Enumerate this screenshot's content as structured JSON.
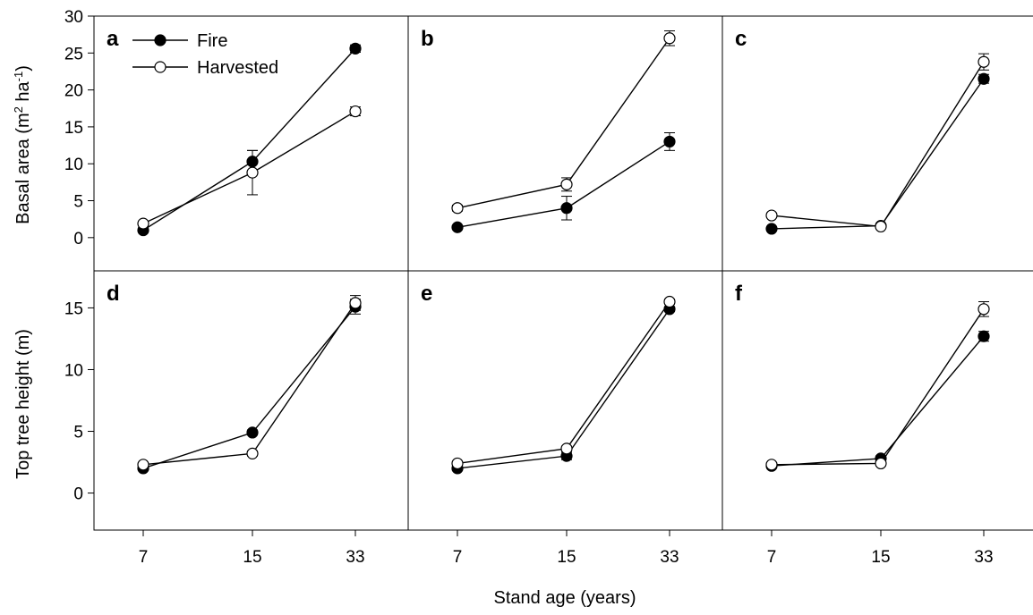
{
  "figure": {
    "xlabel": "Stand age (years)",
    "legend": {
      "placement": "top-left of panel a",
      "entries": [
        {
          "key": "fire",
          "label": "Fire",
          "marker": "filled-circle"
        },
        {
          "key": "harvested",
          "label": "Harvested",
          "marker": "open-circle"
        }
      ]
    },
    "rows": [
      {
        "ylabel_main": "Basal area (m",
        "ylabel_sup1": "2",
        "ylabel_mid": " ha",
        "ylabel_sup2": "-1",
        "ylabel_end": ")",
        "ylim": [
          -4.5,
          30
        ],
        "yticks": [
          0,
          5,
          10,
          15,
          20,
          25,
          30
        ]
      },
      {
        "ylabel_main": "Top tree height (m)",
        "ylabel_sup1": "",
        "ylabel_mid": "",
        "ylabel_sup2": "",
        "ylabel_end": "",
        "ylim": [
          -3,
          18
        ],
        "yticks": [
          0,
          5,
          10,
          15
        ]
      }
    ],
    "colors": {
      "axis": "#000000",
      "fire": "#000000",
      "harvested_fill": "#ffffff"
    }
  },
  "chart_data": [
    {
      "panel": "a",
      "type": "line",
      "categories": [
        "7",
        "15",
        "33"
      ],
      "xlabel": "Stand age (years)",
      "ylabel": "Basal area (m2 ha-1)",
      "series": [
        {
          "name": "Fire",
          "values": [
            1.0,
            10.3,
            25.6
          ],
          "errors": [
            0.3,
            1.5,
            0.5
          ]
        },
        {
          "name": "Harvested",
          "values": [
            1.9,
            8.8,
            17.1
          ],
          "errors": [
            0.3,
            3.0,
            0.6
          ]
        }
      ]
    },
    {
      "panel": "b",
      "type": "line",
      "categories": [
        "7",
        "15",
        "33"
      ],
      "xlabel": "Stand age (years)",
      "ylabel": "Basal area (m2 ha-1)",
      "series": [
        {
          "name": "Fire",
          "values": [
            1.4,
            4.0,
            13.0
          ],
          "errors": [
            0.2,
            1.6,
            1.2
          ]
        },
        {
          "name": "Harvested",
          "values": [
            4.0,
            7.2,
            27.0
          ],
          "errors": [
            0.4,
            0.9,
            1.0
          ]
        }
      ]
    },
    {
      "panel": "c",
      "type": "line",
      "categories": [
        "7",
        "15",
        "33"
      ],
      "xlabel": "Stand age (years)",
      "ylabel": "Basal area (m2 ha-1)",
      "series": [
        {
          "name": "Fire",
          "values": [
            1.2,
            1.6,
            21.5
          ],
          "errors": [
            0.2,
            0.3,
            0.6
          ]
        },
        {
          "name": "Harvested",
          "values": [
            3.0,
            1.5,
            23.8
          ],
          "errors": [
            0.3,
            0.3,
            1.1
          ]
        }
      ]
    },
    {
      "panel": "d",
      "type": "line",
      "categories": [
        "7",
        "15",
        "33"
      ],
      "xlabel": "Stand age (years)",
      "ylabel": "Top tree height (m)",
      "series": [
        {
          "name": "Fire",
          "values": [
            2.0,
            4.9,
            15.1
          ],
          "errors": [
            0.1,
            0.2,
            0.6
          ]
        },
        {
          "name": "Harvested",
          "values": [
            2.3,
            3.2,
            15.4
          ],
          "errors": [
            0.1,
            0.2,
            0.6
          ]
        }
      ]
    },
    {
      "panel": "e",
      "type": "line",
      "categories": [
        "7",
        "15",
        "33"
      ],
      "xlabel": "Stand age (years)",
      "ylabel": "Top tree height (m)",
      "series": [
        {
          "name": "Fire",
          "values": [
            2.0,
            3.0,
            14.9
          ],
          "errors": [
            0.1,
            0.3,
            0.2
          ]
        },
        {
          "name": "Harvested",
          "values": [
            2.4,
            3.6,
            15.5
          ],
          "errors": [
            0.1,
            0.2,
            0.2
          ]
        }
      ]
    },
    {
      "panel": "f",
      "type": "line",
      "categories": [
        "7",
        "15",
        "33"
      ],
      "xlabel": "Stand age (years)",
      "ylabel": "Top tree height (m)",
      "series": [
        {
          "name": "Fire",
          "values": [
            2.2,
            2.8,
            12.7
          ],
          "errors": [
            0.1,
            0.2,
            0.4
          ]
        },
        {
          "name": "Harvested",
          "values": [
            2.3,
            2.4,
            14.9
          ],
          "errors": [
            0.1,
            0.2,
            0.6
          ]
        }
      ]
    }
  ]
}
